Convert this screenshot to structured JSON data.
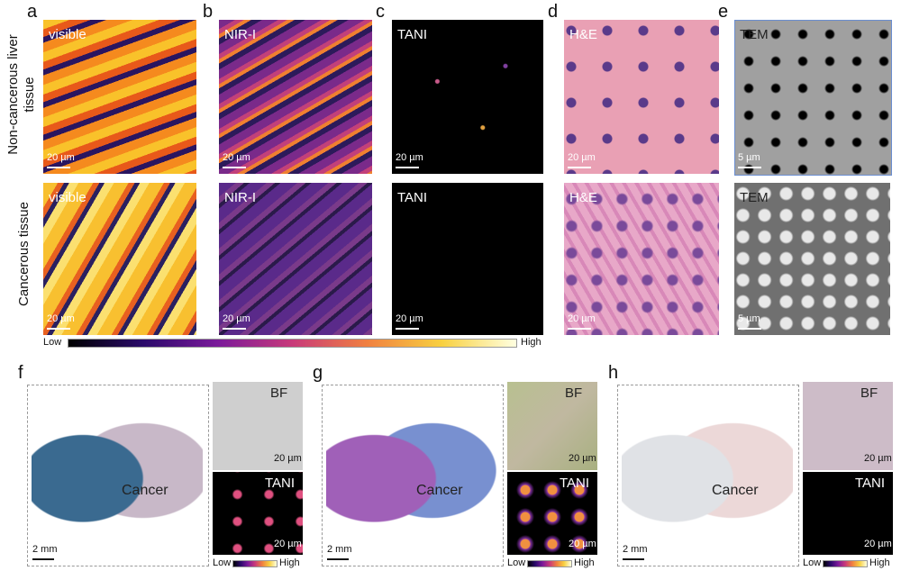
{
  "row_labels": [
    "Non-cancerous liver tissue",
    "Cancerous tissue"
  ],
  "top_panels": [
    {
      "letter": "a",
      "rows": [
        {
          "label": "visible",
          "scale": "20 µm"
        },
        {
          "label": "visible",
          "scale": "20 µm"
        }
      ]
    },
    {
      "letter": "b",
      "rows": [
        {
          "label": "NIR-I",
          "scale": "20 µm"
        },
        {
          "label": "NIR-I",
          "scale": "20 µm"
        }
      ]
    },
    {
      "letter": "c",
      "rows": [
        {
          "label": "TANI",
          "scale": "20 µm"
        },
        {
          "label": "TANI",
          "scale": "20 µm"
        }
      ]
    },
    {
      "letter": "d",
      "rows": [
        {
          "label": "H&E",
          "scale": "20 µm"
        },
        {
          "label": "H&E",
          "scale": "20 µm"
        }
      ]
    },
    {
      "letter": "e",
      "rows": [
        {
          "label": "TEM",
          "scale": "5 µm"
        },
        {
          "label": "TEM",
          "scale": "5 µm"
        }
      ]
    }
  ],
  "colorbar": {
    "low": "Low",
    "high": "High"
  },
  "bottom_panels": [
    {
      "letter": "f",
      "region": "Cancer",
      "scale": "2 mm",
      "bf": "BF",
      "bf_scale": "20 µm",
      "tani": "TANI",
      "tani_scale": "20 µm",
      "low": "Low",
      "high": "High"
    },
    {
      "letter": "g",
      "region": "Cancer",
      "scale": "2 mm",
      "bf": "BF",
      "bf_scale": "20 µm",
      "tani": "TANI",
      "tani_scale": "20 µm",
      "low": "Low",
      "high": "High"
    },
    {
      "letter": "h",
      "region": "Cancer",
      "scale": "2 mm",
      "bf": "BF",
      "bf_scale": "20 µm",
      "tani": "TANI",
      "tani_scale": "20 µm",
      "low": "Low",
      "high": "High"
    }
  ]
}
